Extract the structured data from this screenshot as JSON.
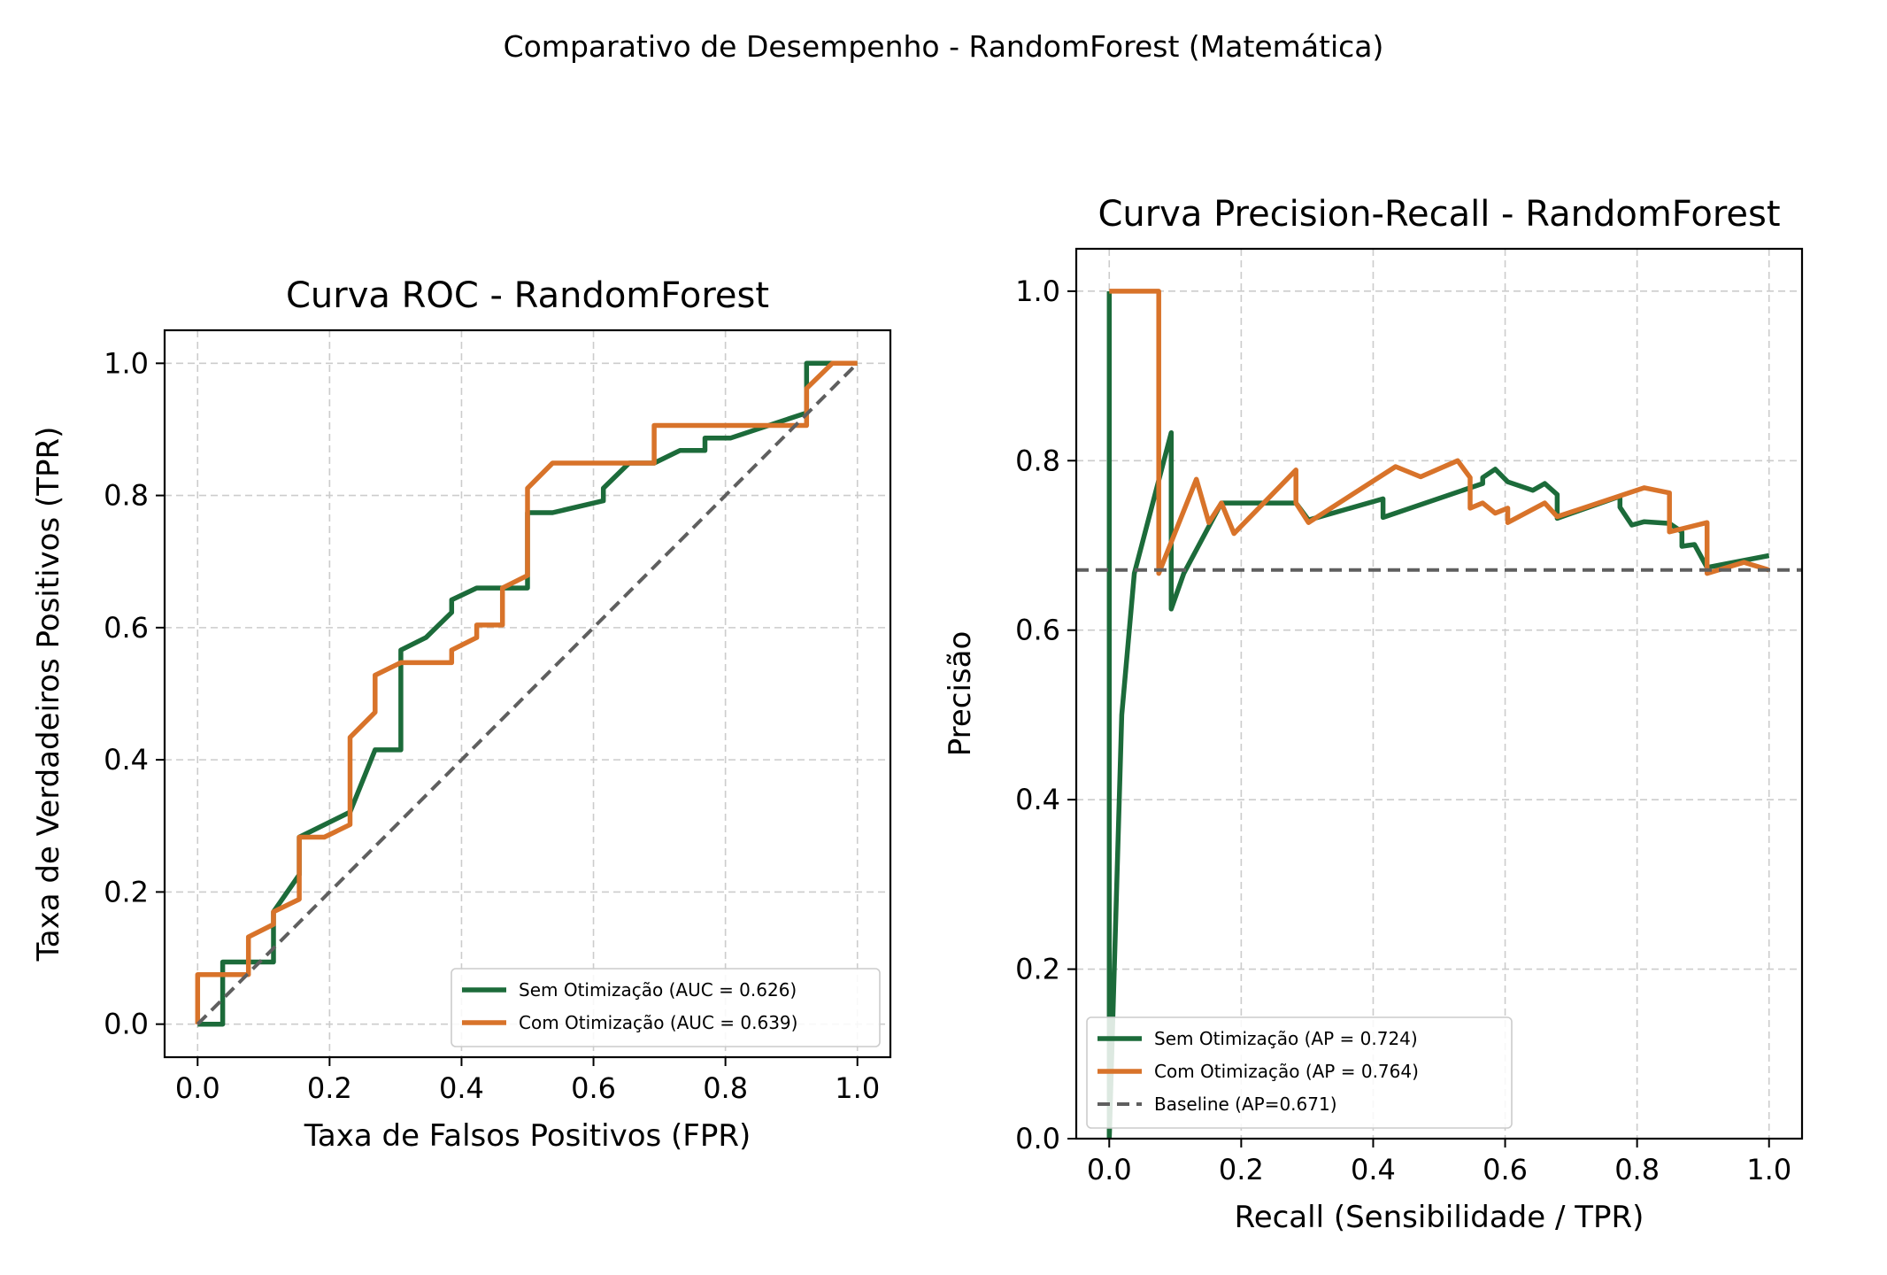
{
  "suptitle": "Comparativo de Desempenho - RandomForest (Matemática)",
  "colors": {
    "sem": "#1c6b3a",
    "com": "#d8732a",
    "baseline": "#5f5f5f",
    "grid": "#cccccc"
  },
  "chart_data": [
    {
      "type": "line",
      "title": "Curva ROC - RandomForest",
      "xlabel": "Taxa de Falsos Positivos (FPR)",
      "ylabel": "Taxa de Verdadeiros Positivos (TPR)",
      "xlim": [
        -0.05,
        1.05
      ],
      "ylim": [
        -0.05,
        1.05
      ],
      "xticks": [
        0.0,
        0.2,
        0.4,
        0.6,
        0.8,
        1.0
      ],
      "yticks": [
        0.0,
        0.2,
        0.4,
        0.6,
        0.8,
        1.0
      ],
      "tick_labels": [
        "0.0",
        "0.2",
        "0.4",
        "0.6",
        "0.8",
        "1.0"
      ],
      "grid": true,
      "legend_position": "lower-right",
      "series": [
        {
          "name": "Sem Otimização (AUC = 0.626)",
          "color_key": "sem",
          "dashed": false,
          "points": [
            [
              0,
              0
            ],
            [
              0.038,
              0
            ],
            [
              0.038,
              0.094
            ],
            [
              0.077,
              0.094
            ],
            [
              0.115,
              0.094
            ],
            [
              0.115,
              0.17
            ],
            [
              0.154,
              0.226
            ],
            [
              0.154,
              0.283
            ],
            [
              0.231,
              0.321
            ],
            [
              0.269,
              0.415
            ],
            [
              0.308,
              0.415
            ],
            [
              0.308,
              0.566
            ],
            [
              0.346,
              0.585
            ],
            [
              0.385,
              0.623
            ],
            [
              0.385,
              0.642
            ],
            [
              0.423,
              0.66
            ],
            [
              0.5,
              0.66
            ],
            [
              0.5,
              0.774
            ],
            [
              0.538,
              0.774
            ],
            [
              0.615,
              0.792
            ],
            [
              0.615,
              0.811
            ],
            [
              0.654,
              0.849
            ],
            [
              0.692,
              0.849
            ],
            [
              0.731,
              0.868
            ],
            [
              0.769,
              0.868
            ],
            [
              0.769,
              0.887
            ],
            [
              0.808,
              0.887
            ],
            [
              0.923,
              0.925
            ],
            [
              0.923,
              1.0
            ],
            [
              1.0,
              1.0
            ]
          ]
        },
        {
          "name": "Com Otimização (AUC = 0.639)",
          "color_key": "com",
          "dashed": false,
          "points": [
            [
              0,
              0
            ],
            [
              0,
              0.075
            ],
            [
              0.077,
              0.075
            ],
            [
              0.077,
              0.132
            ],
            [
              0.115,
              0.151
            ],
            [
              0.115,
              0.17
            ],
            [
              0.154,
              0.189
            ],
            [
              0.154,
              0.283
            ],
            [
              0.192,
              0.283
            ],
            [
              0.231,
              0.302
            ],
            [
              0.231,
              0.434
            ],
            [
              0.269,
              0.472
            ],
            [
              0.269,
              0.528
            ],
            [
              0.308,
              0.547
            ],
            [
              0.385,
              0.547
            ],
            [
              0.385,
              0.566
            ],
            [
              0.423,
              0.585
            ],
            [
              0.423,
              0.604
            ],
            [
              0.462,
              0.604
            ],
            [
              0.462,
              0.66
            ],
            [
              0.5,
              0.679
            ],
            [
              0.5,
              0.811
            ],
            [
              0.538,
              0.849
            ],
            [
              0.692,
              0.849
            ],
            [
              0.692,
              0.906
            ],
            [
              0.923,
              0.906
            ],
            [
              0.923,
              0.962
            ],
            [
              0.962,
              1.0
            ],
            [
              1.0,
              1.0
            ]
          ]
        },
        {
          "name": "",
          "color_key": "baseline",
          "dashed": true,
          "points": [
            [
              0,
              0
            ],
            [
              1,
              1
            ]
          ]
        }
      ]
    },
    {
      "type": "line",
      "title": "Curva Precision-Recall - RandomForest",
      "xlabel": "Recall (Sensibilidade / TPR)",
      "ylabel": "Precisão",
      "xlim": [
        -0.05,
        1.05
      ],
      "ylim": [
        0.0,
        1.05
      ],
      "xticks": [
        0.0,
        0.2,
        0.4,
        0.6,
        0.8,
        1.0
      ],
      "yticks": [
        0.0,
        0.2,
        0.4,
        0.6,
        0.8,
        1.0
      ],
      "tick_labels": [
        "0.0",
        "0.2",
        "0.4",
        "0.6",
        "0.8",
        "1.0"
      ],
      "grid": true,
      "legend_position": "lower-left",
      "series": [
        {
          "name": "Sem Otimização (AP = 0.724)",
          "color_key": "sem",
          "dashed": false,
          "points": [
            [
              0,
              1.0
            ],
            [
              0,
              0.0
            ],
            [
              0.019,
              0.5
            ],
            [
              0.038,
              0.667
            ],
            [
              0.094,
              0.833
            ],
            [
              0.094,
              0.625
            ],
            [
              0.113,
              0.667
            ],
            [
              0.17,
              0.75
            ],
            [
              0.283,
              0.75
            ],
            [
              0.302,
              0.73
            ],
            [
              0.415,
              0.755
            ],
            [
              0.415,
              0.733
            ],
            [
              0.566,
              0.773
            ],
            [
              0.566,
              0.78
            ],
            [
              0.585,
              0.79
            ],
            [
              0.604,
              0.775
            ],
            [
              0.642,
              0.765
            ],
            [
              0.66,
              0.773
            ],
            [
              0.679,
              0.76
            ],
            [
              0.679,
              0.732
            ],
            [
              0.774,
              0.758
            ],
            [
              0.774,
              0.745
            ],
            [
              0.792,
              0.724
            ],
            [
              0.811,
              0.728
            ],
            [
              0.849,
              0.726
            ],
            [
              0.868,
              0.716
            ],
            [
              0.868,
              0.699
            ],
            [
              0.887,
              0.701
            ],
            [
              0.906,
              0.674
            ],
            [
              1.0,
              0.688
            ]
          ]
        },
        {
          "name": "Com Otimização (AP = 0.764)",
          "color_key": "com",
          "dashed": false,
          "points": [
            [
              0,
              1.0
            ],
            [
              0.075,
              1.0
            ],
            [
              0.075,
              0.667
            ],
            [
              0.132,
              0.778
            ],
            [
              0.151,
              0.727
            ],
            [
              0.17,
              0.75
            ],
            [
              0.189,
              0.714
            ],
            [
              0.283,
              0.789
            ],
            [
              0.283,
              0.75
            ],
            [
              0.302,
              0.727
            ],
            [
              0.434,
              0.793
            ],
            [
              0.472,
              0.781
            ],
            [
              0.528,
              0.8
            ],
            [
              0.547,
              0.78
            ],
            [
              0.547,
              0.744
            ],
            [
              0.566,
              0.75
            ],
            [
              0.585,
              0.738
            ],
            [
              0.604,
              0.744
            ],
            [
              0.604,
              0.727
            ],
            [
              0.66,
              0.75
            ],
            [
              0.679,
              0.734
            ],
            [
              0.811,
              0.768
            ],
            [
              0.849,
              0.762
            ],
            [
              0.849,
              0.716
            ],
            [
              0.906,
              0.727
            ],
            [
              0.906,
              0.667
            ],
            [
              0.962,
              0.68
            ],
            [
              1.0,
              0.671
            ]
          ]
        },
        {
          "name": "Baseline (AP=0.671)",
          "color_key": "baseline",
          "dashed": true,
          "points": [
            [
              -0.05,
              0.671
            ],
            [
              1.05,
              0.671
            ]
          ]
        }
      ]
    }
  ]
}
